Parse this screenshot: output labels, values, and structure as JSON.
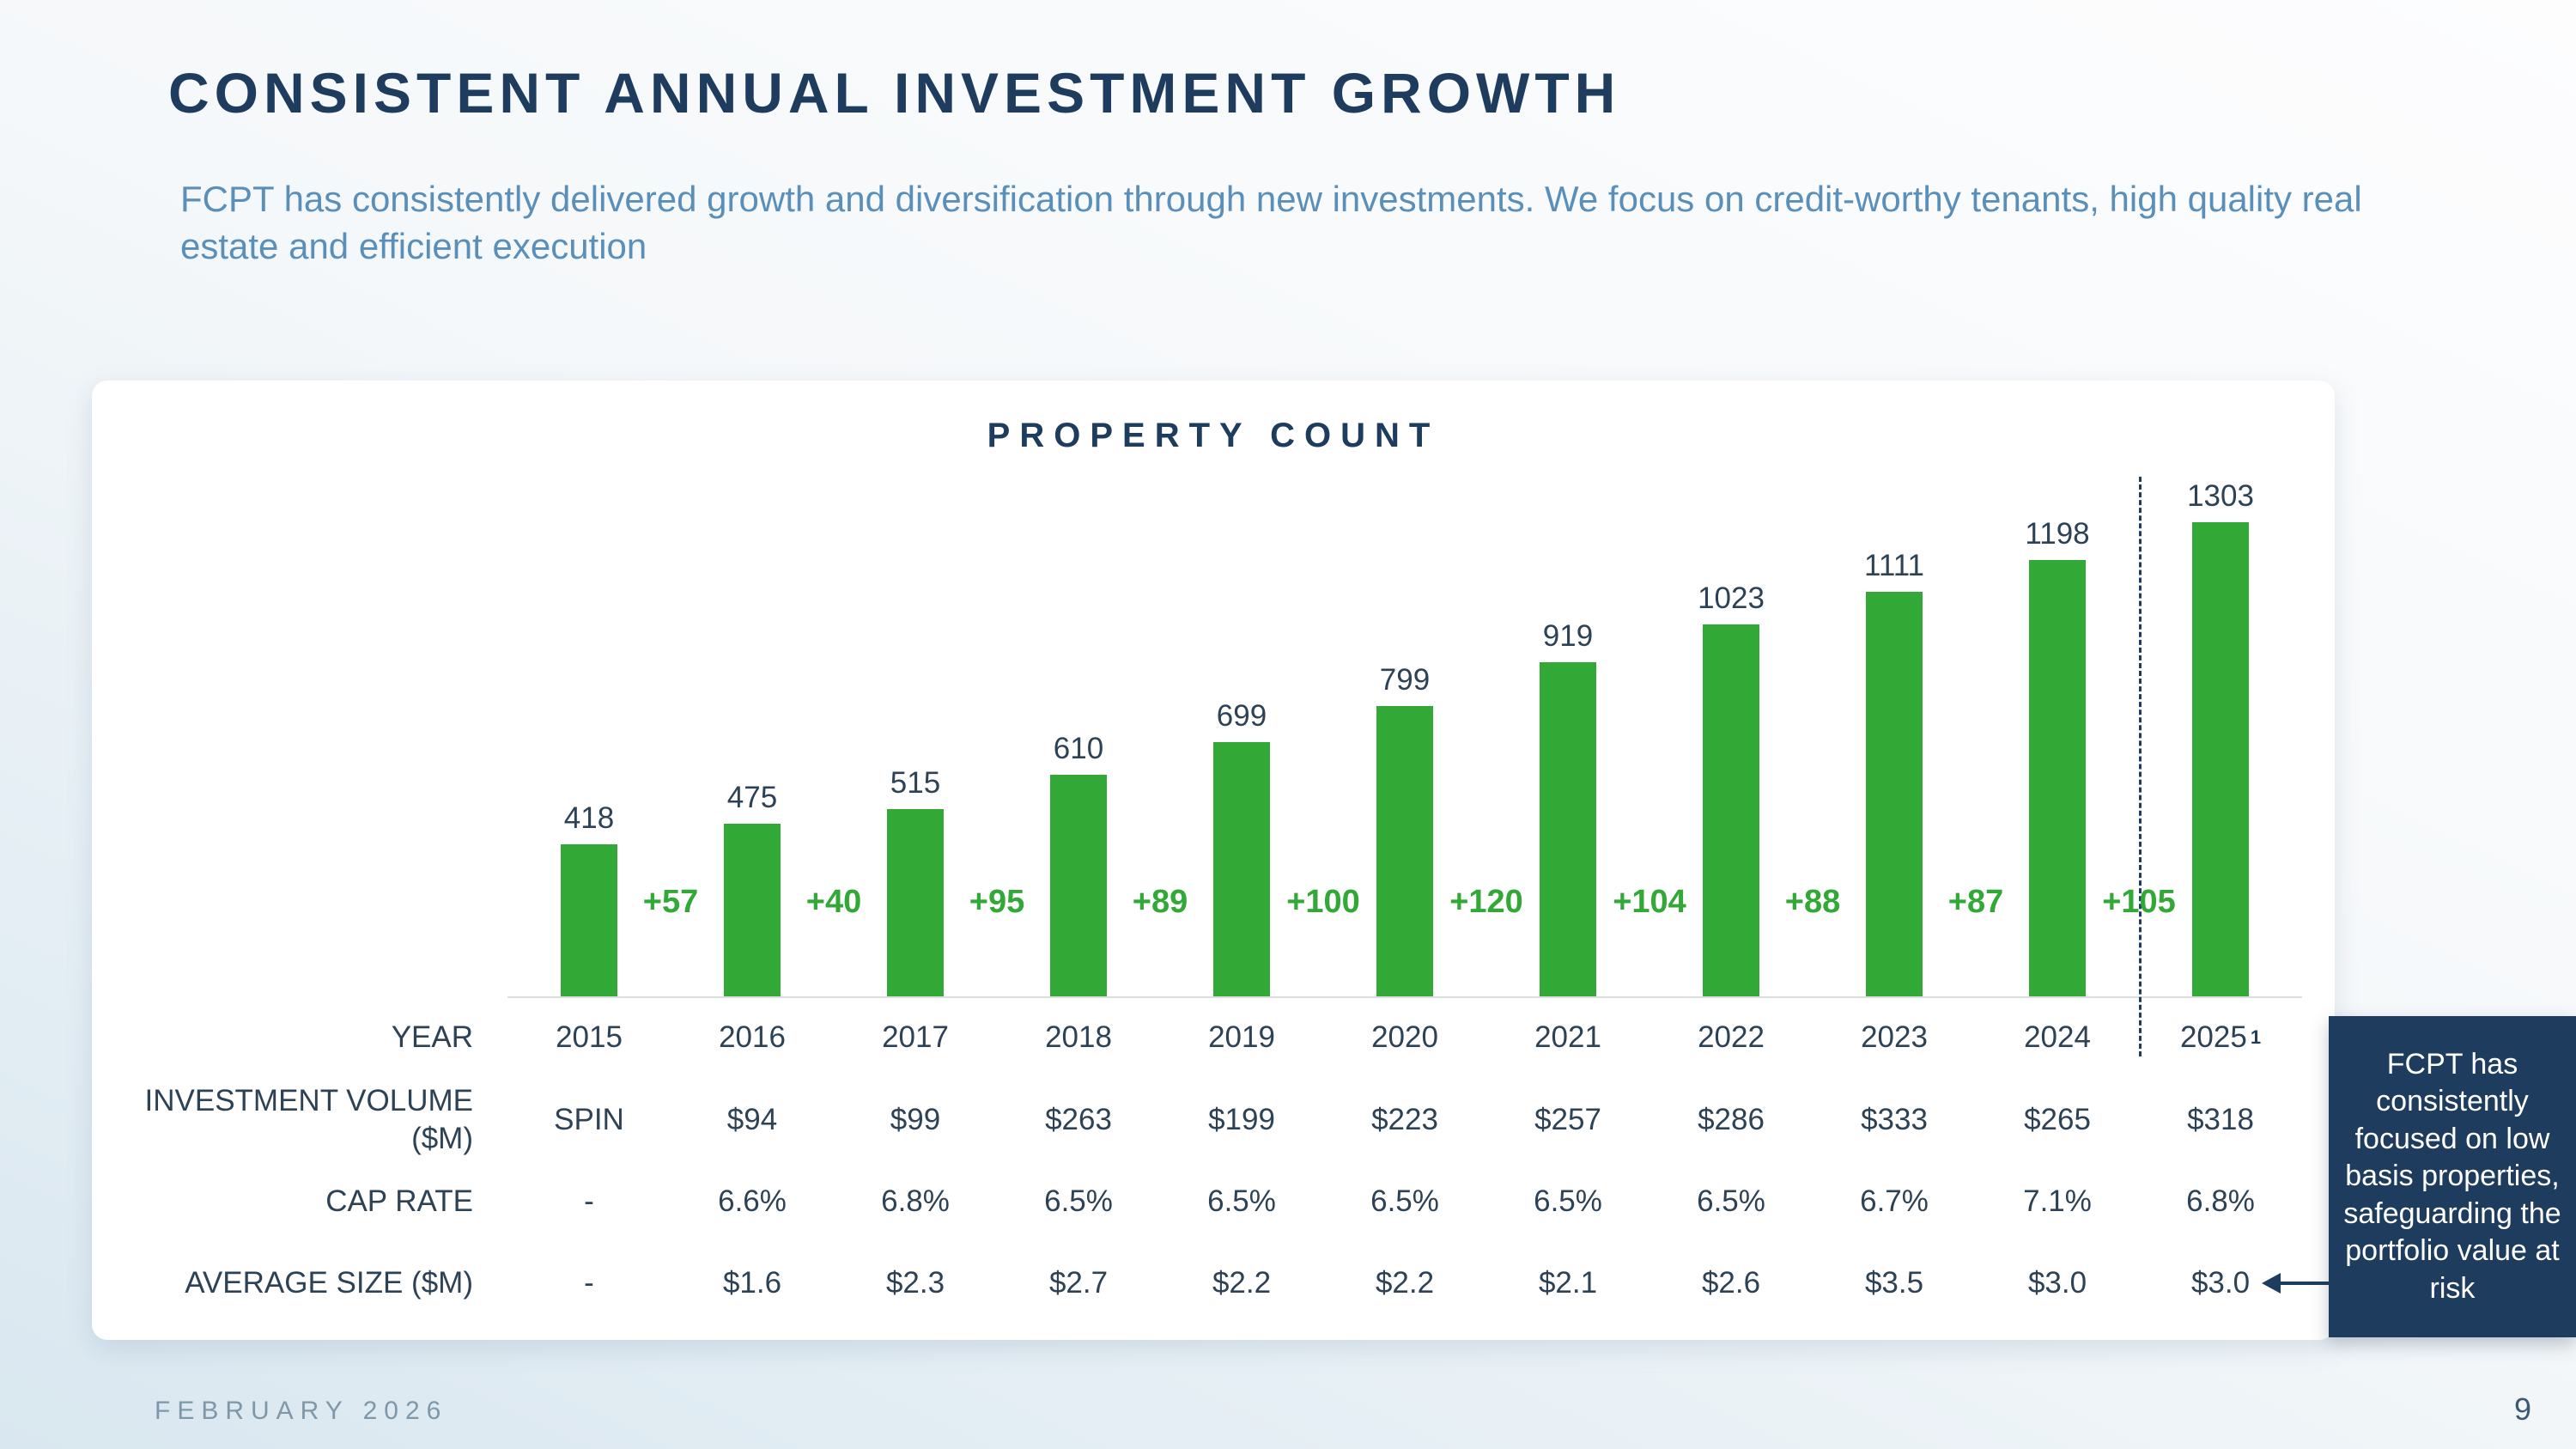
{
  "header": {
    "title": "CONSISTENT ANNUAL INVESTMENT GROWTH",
    "subtitle": "FCPT has consistently delivered growth and diversification through new investments.  We focus on credit-worthy tenants, high quality real estate and efficient execution"
  },
  "colors": {
    "navy": "#1e3c5e",
    "green": "#32a836",
    "subtitle_blue": "#5a8fba"
  },
  "chart_data": {
    "type": "bar",
    "title": "PROPERTY COUNT",
    "categories": [
      "2015",
      "2016",
      "2017",
      "2018",
      "2019",
      "2020",
      "2021",
      "2022",
      "2023",
      "2024",
      "2025"
    ],
    "values": [
      418,
      475,
      515,
      610,
      699,
      799,
      919,
      1023,
      1111,
      1198,
      1303
    ],
    "deltas": [
      "+57",
      "+40",
      "+95",
      "+89",
      "+100",
      "+120",
      "+104",
      "+88",
      "+87",
      "+105"
    ],
    "bar_color": "#32a836",
    "ylim": [
      0,
      1400
    ],
    "grid": "off",
    "legend": "none",
    "forecast_divider_after": "2024"
  },
  "table": {
    "rows": [
      {
        "label": "YEAR",
        "values": [
          "2015",
          "2016",
          "2017",
          "2018",
          "2019",
          "2020",
          "2021",
          "2022",
          "2023",
          "2024",
          "2025"
        ]
      },
      {
        "label": "INVESTMENT VOLUME ($M)",
        "values": [
          "SPIN",
          "$94",
          "$99",
          "$263",
          "$199",
          "$223",
          "$257",
          "$286",
          "$333",
          "$265",
          "$318"
        ]
      },
      {
        "label": "CAP RATE",
        "values": [
          "-",
          "6.6%",
          "6.8%",
          "6.5%",
          "6.5%",
          "6.5%",
          "6.5%",
          "6.5%",
          "6.7%",
          "7.1%",
          "6.8%"
        ]
      },
      {
        "label": "AVERAGE SIZE ($M)",
        "values": [
          "-",
          "$1.6",
          "$2.3",
          "$2.7",
          "$2.2",
          "$2.2",
          "$2.1",
          "$2.6",
          "$3.5",
          "$3.0",
          "$3.0"
        ]
      }
    ],
    "year_footnote_marker": "1"
  },
  "callout": {
    "text": "FCPT has consistently focused on low basis properties, safeguarding the portfolio value at risk"
  },
  "footer": {
    "date": "FEBRUARY 2026",
    "page_number": "9"
  }
}
